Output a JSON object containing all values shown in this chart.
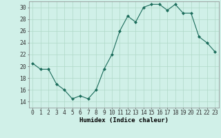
{
  "x": [
    0,
    1,
    2,
    3,
    4,
    5,
    6,
    7,
    8,
    9,
    10,
    11,
    12,
    13,
    14,
    15,
    16,
    17,
    18,
    19,
    20,
    21,
    22,
    23
  ],
  "y": [
    20.5,
    19.5,
    19.5,
    17.0,
    16.0,
    14.5,
    15.0,
    14.5,
    16.0,
    19.5,
    22.0,
    26.0,
    28.5,
    27.5,
    30.0,
    30.5,
    30.5,
    29.5,
    30.5,
    29.0,
    29.0,
    25.0,
    24.0,
    22.5
  ],
  "line_color": "#1a6b5a",
  "marker": "D",
  "marker_size": 2.0,
  "xlabel": "Humidex (Indice chaleur)",
  "xlim": [
    -0.5,
    23.5
  ],
  "ylim": [
    13,
    31
  ],
  "yticks": [
    14,
    16,
    18,
    20,
    22,
    24,
    26,
    28,
    30
  ],
  "xtick_labels": [
    "0",
    "1",
    "2",
    "3",
    "4",
    "5",
    "6",
    "7",
    "8",
    "9",
    "10",
    "11",
    "12",
    "13",
    "14",
    "15",
    "16",
    "17",
    "18",
    "19",
    "20",
    "21",
    "22",
    "23"
  ],
  "bg_color": "#d0f0e8",
  "grid_color": "#b0d8c8",
  "label_fontsize": 6.5,
  "tick_fontsize": 5.8
}
